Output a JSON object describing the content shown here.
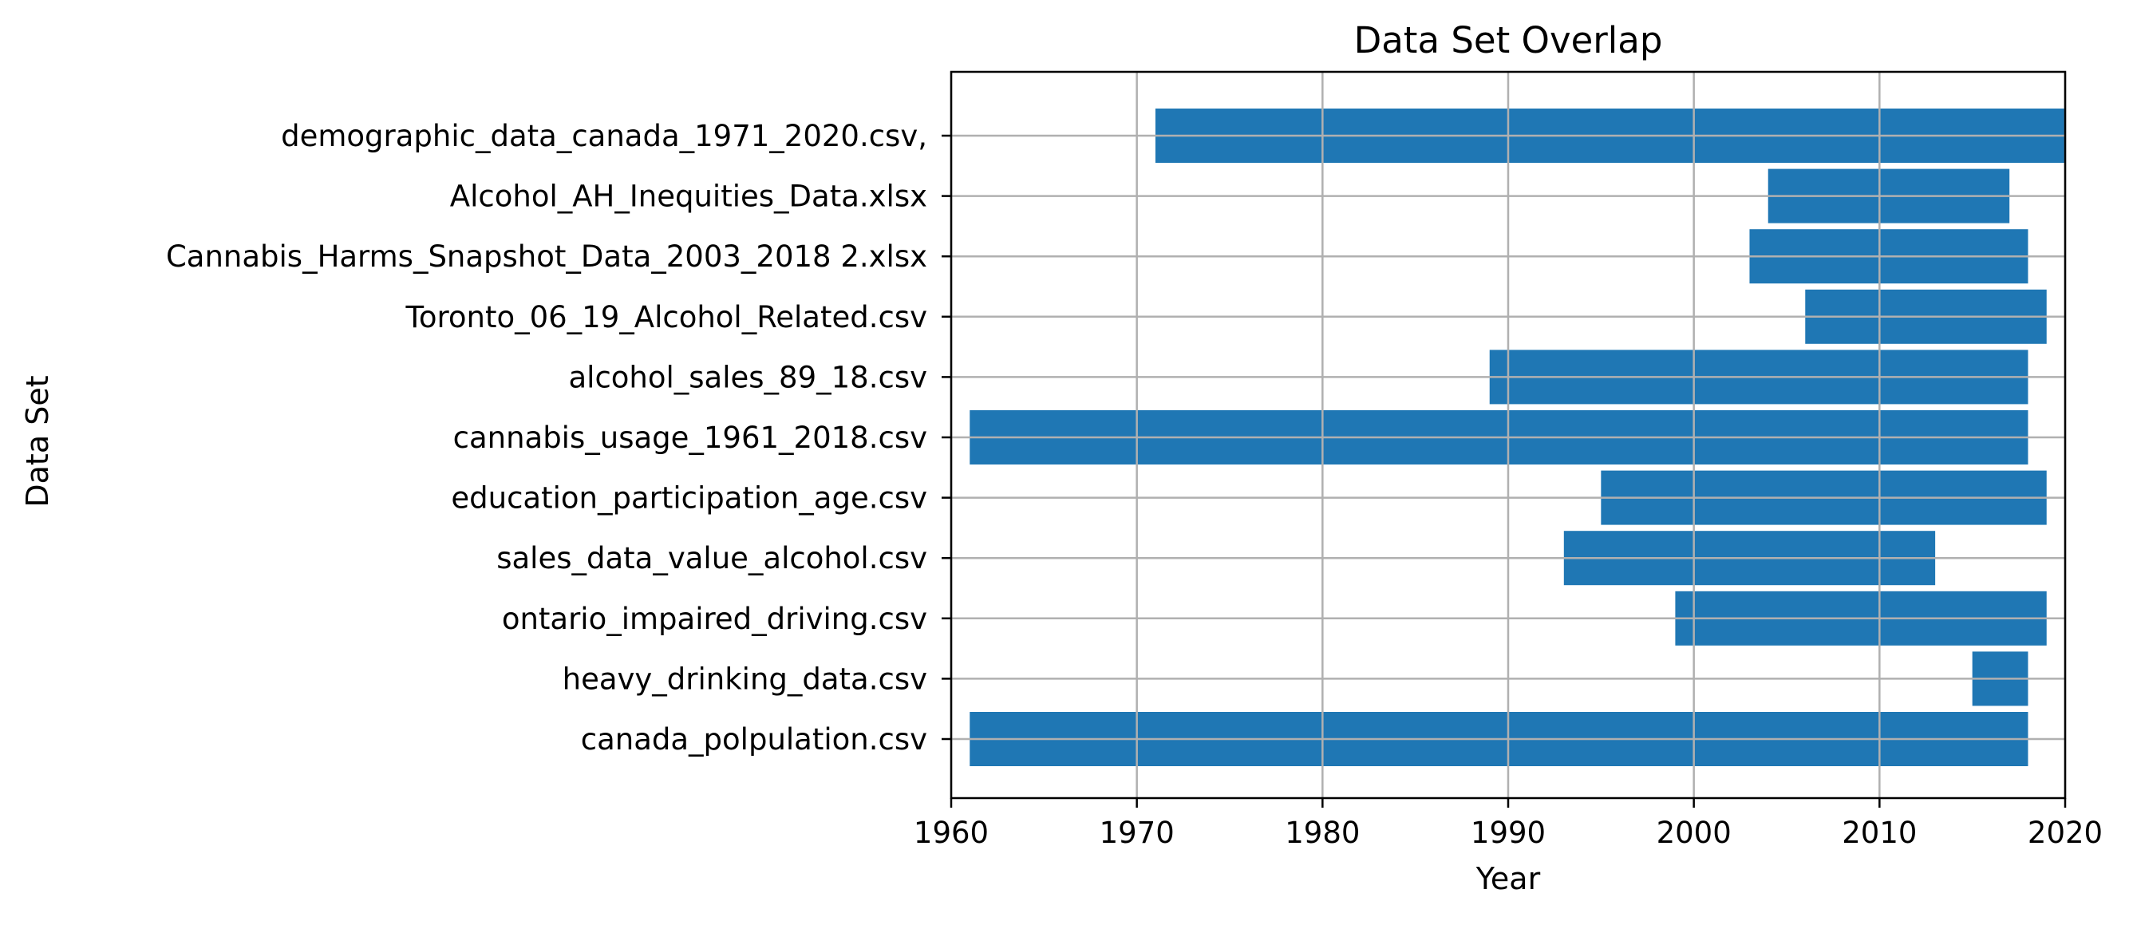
{
  "chart_data": {
    "type": "bar",
    "orientation": "horizontal",
    "title": "Data Set Overlap",
    "xlabel": "Year",
    "ylabel": "Data Set",
    "xlim": [
      1960,
      2020
    ],
    "xticks": [
      1960,
      1970,
      1980,
      1990,
      2000,
      2010,
      2020
    ],
    "grid": true,
    "bar_color": "#1f77b4",
    "categories": [
      "canada_polpulation.csv",
      "heavy_drinking_data.csv",
      "ontario_impaired_driving.csv",
      "sales_data_value_alcohol.csv",
      "education_participation_age.csv",
      "cannabis_usage_1961_2018.csv",
      "alcohol_sales_89_18.csv",
      "Toronto_06_19_Alcohol_Related.csv",
      "Cannabis_Harms_Snapshot_Data_2003_2018 2.xlsx",
      "Alcohol_AH_Inequities_Data.xlsx",
      "demographic_data_canada_1971_2020.csv,"
    ],
    "start": [
      1961,
      2015,
      1999,
      1993,
      1995,
      1961,
      1989,
      2006,
      2003,
      2004,
      1971
    ],
    "end": [
      2018,
      2018,
      2019,
      2013,
      2019,
      2018,
      2018,
      2019,
      2018,
      2017,
      2020
    ]
  }
}
